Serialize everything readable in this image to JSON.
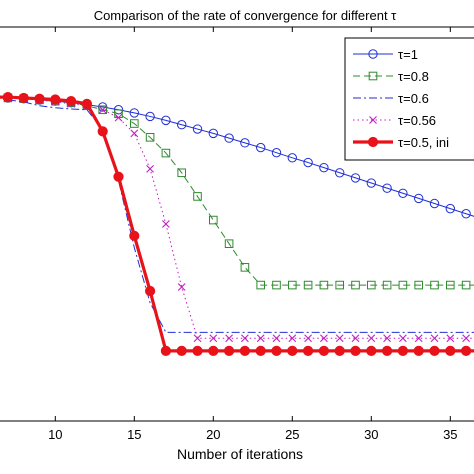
{
  "chart_data": {
    "type": "line",
    "title": "Comparison of the rate of convergence for different τ",
    "xlabel": "Number of iterations",
    "ylabel": "",
    "xlim": [
      6.5,
      36.5
    ],
    "ylim": [
      0,
      1
    ],
    "x_ticks": [
      10,
      15,
      20,
      25,
      30,
      35
    ],
    "grid": false,
    "legend_position": "top-right",
    "series": [
      {
        "name": "τ=1",
        "color": "#1f2fd6",
        "line_style": "solid",
        "marker": "circle",
        "x": [
          6,
          7,
          8,
          9,
          10,
          11,
          12,
          13,
          14,
          15,
          16,
          17,
          18,
          19,
          20,
          21,
          22,
          23,
          24,
          25,
          26,
          27,
          28,
          29,
          30,
          31,
          32,
          33,
          34,
          35,
          36,
          37
        ],
        "y": [
          0.82,
          0.82,
          0.818,
          0.815,
          0.812,
          0.808,
          0.803,
          0.797,
          0.79,
          0.782,
          0.773,
          0.763,
          0.752,
          0.741,
          0.73,
          0.718,
          0.706,
          0.694,
          0.681,
          0.668,
          0.656,
          0.643,
          0.63,
          0.617,
          0.604,
          0.591,
          0.578,
          0.565,
          0.552,
          0.539,
          0.526,
          0.513
        ]
      },
      {
        "name": "τ=0.8",
        "color": "#2e8b2e",
        "line_style": "dashed",
        "marker": "square",
        "x": [
          6,
          7,
          8,
          9,
          10,
          11,
          12,
          13,
          14,
          15,
          16,
          17,
          18,
          19,
          20,
          21,
          22,
          23,
          24,
          25,
          26,
          27,
          28,
          29,
          30,
          31,
          32,
          33,
          34,
          35,
          36,
          37
        ],
        "y": [
          0.82,
          0.82,
          0.818,
          0.815,
          0.812,
          0.808,
          0.8,
          0.79,
          0.78,
          0.755,
          0.72,
          0.68,
          0.63,
          0.57,
          0.51,
          0.45,
          0.39,
          0.345,
          0.345,
          0.345,
          0.345,
          0.345,
          0.345,
          0.345,
          0.345,
          0.345,
          0.345,
          0.345,
          0.345,
          0.345,
          0.345,
          0.345
        ]
      },
      {
        "name": "τ=0.6",
        "color": "#1f2fd6",
        "line_style": "dashdot",
        "marker": "none",
        "x": [
          6,
          7,
          8,
          9,
          10,
          11,
          12,
          13,
          14,
          15,
          16,
          17,
          18,
          19,
          20,
          21,
          22,
          23,
          24,
          25,
          26,
          27,
          28,
          29,
          30,
          31,
          32,
          33,
          34,
          35,
          36,
          37
        ],
        "y": [
          0.82,
          0.815,
          0.81,
          0.8,
          0.795,
          0.792,
          0.79,
          0.74,
          0.61,
          0.44,
          0.3,
          0.225,
          0.225,
          0.225,
          0.225,
          0.225,
          0.225,
          0.225,
          0.225,
          0.225,
          0.225,
          0.225,
          0.225,
          0.225,
          0.225,
          0.225,
          0.225,
          0.225,
          0.225,
          0.225,
          0.225,
          0.225
        ]
      },
      {
        "name": "τ=0.56",
        "color": "#c020c0",
        "line_style": "dotted",
        "marker": "x",
        "x": [
          6,
          7,
          8,
          9,
          10,
          11,
          12,
          13,
          14,
          15,
          16,
          17,
          18,
          19,
          20,
          21,
          22,
          23,
          24,
          25,
          26,
          27,
          28,
          29,
          30,
          31,
          32,
          33,
          34,
          35,
          36,
          37
        ],
        "y": [
          0.82,
          0.82,
          0.818,
          0.815,
          0.81,
          0.805,
          0.8,
          0.79,
          0.77,
          0.73,
          0.64,
          0.5,
          0.34,
          0.21,
          0.21,
          0.21,
          0.21,
          0.21,
          0.21,
          0.21,
          0.21,
          0.21,
          0.21,
          0.21,
          0.21,
          0.21,
          0.21,
          0.21,
          0.21,
          0.21,
          0.21,
          0.21
        ]
      },
      {
        "name": "τ=0.5, ini",
        "color": "#e8121a",
        "line_style": "solid",
        "marker": "filled-circle",
        "x": [
          6,
          7,
          8,
          9,
          10,
          11,
          12,
          13,
          14,
          15,
          16,
          17,
          18,
          19,
          20,
          21,
          22,
          23,
          24,
          25,
          26,
          27,
          28,
          29,
          30,
          31,
          32,
          33,
          34,
          35,
          36,
          37
        ],
        "y": [
          0.822,
          0.822,
          0.82,
          0.818,
          0.816,
          0.812,
          0.805,
          0.735,
          0.62,
          0.47,
          0.33,
          0.178,
          0.178,
          0.178,
          0.178,
          0.178,
          0.178,
          0.178,
          0.178,
          0.178,
          0.178,
          0.178,
          0.178,
          0.178,
          0.178,
          0.178,
          0.178,
          0.178,
          0.178,
          0.178,
          0.178,
          0.178
        ]
      }
    ]
  }
}
